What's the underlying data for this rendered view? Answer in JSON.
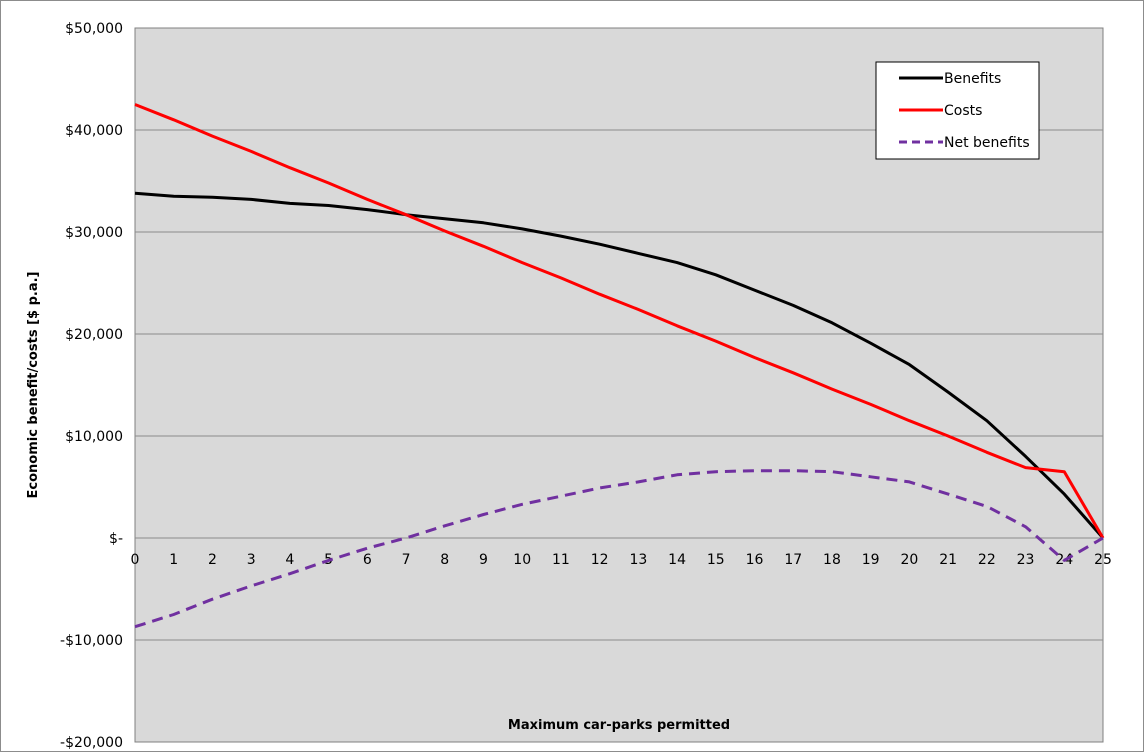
{
  "chart_data": {
    "type": "line",
    "title": "",
    "xlabel": "Maximum car-parks permitted",
    "ylabel": "Economic benefit/costs [$ p.a.]",
    "x": [
      0,
      1,
      2,
      3,
      4,
      5,
      6,
      7,
      8,
      9,
      10,
      11,
      12,
      13,
      14,
      15,
      16,
      17,
      18,
      19,
      20,
      21,
      22,
      23,
      24,
      25
    ],
    "xlim": [
      0,
      25
    ],
    "ylim": [
      -20000,
      50000
    ],
    "yticks": [
      -20000,
      -10000,
      0,
      10000,
      20000,
      30000,
      40000,
      50000
    ],
    "ytick_labels": [
      "-$20,000",
      "-$10,000",
      "$-",
      "$10,000",
      "$20,000",
      "$30,000",
      "$40,000",
      "$50,000"
    ],
    "grid": true,
    "legend_position": "top-right",
    "series": [
      {
        "name": "Benefits",
        "color": "#000000",
        "dash": "solid",
        "values": [
          33800,
          33500,
          33400,
          33200,
          32800,
          32600,
          32200,
          31700,
          31300,
          30900,
          30300,
          29600,
          28800,
          27900,
          27000,
          25800,
          24300,
          22800,
          21100,
          19100,
          17000,
          14300,
          11500,
          8000,
          4300,
          0
        ]
      },
      {
        "name": "Costs",
        "color": "#ff0000",
        "dash": "solid",
        "values": [
          42500,
          41000,
          39400,
          37900,
          36300,
          34800,
          33200,
          31700,
          30100,
          28600,
          27000,
          25500,
          23900,
          22400,
          20800,
          19300,
          17700,
          16200,
          14600,
          13100,
          11500,
          10000,
          8400,
          6900,
          6500,
          0
        ]
      },
      {
        "name": "Net benefits",
        "color": "#7030a0",
        "dash": "dashed",
        "values": [
          -8700,
          -7500,
          -6000,
          -4700,
          -3500,
          -2200,
          -1000,
          0,
          1200,
          2300,
          3300,
          4100,
          4900,
          5500,
          6200,
          6500,
          6600,
          6600,
          6500,
          6000,
          5500,
          4300,
          3100,
          1100,
          -2200,
          0
        ]
      }
    ]
  }
}
